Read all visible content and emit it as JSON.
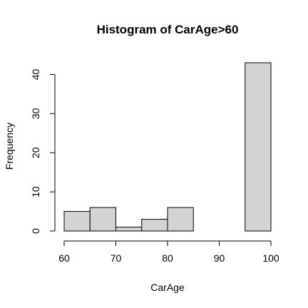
{
  "chart_data": {
    "type": "bar",
    "title": "Histogram of CarAge>60",
    "xlabel": "CarAge",
    "ylabel": "Frequency",
    "bins": [
      {
        "start": 60,
        "end": 65,
        "count": 5
      },
      {
        "start": 65,
        "end": 70,
        "count": 6
      },
      {
        "start": 70,
        "end": 75,
        "count": 1
      },
      {
        "start": 75,
        "end": 80,
        "count": 3
      },
      {
        "start": 80,
        "end": 85,
        "count": 6
      },
      {
        "start": 85,
        "end": 90,
        "count": 0
      },
      {
        "start": 90,
        "end": 95,
        "count": 0
      },
      {
        "start": 95,
        "end": 100,
        "count": 43
      }
    ],
    "xlim": [
      60,
      100
    ],
    "ylim": [
      0,
      43
    ],
    "x_ticks": [
      "60",
      "70",
      "80",
      "90",
      "100"
    ],
    "y_ticks": [
      "0",
      "10",
      "20",
      "30",
      "40"
    ],
    "bar_fill": "#d3d3d3",
    "bar_stroke": "#000000",
    "grid": false
  }
}
